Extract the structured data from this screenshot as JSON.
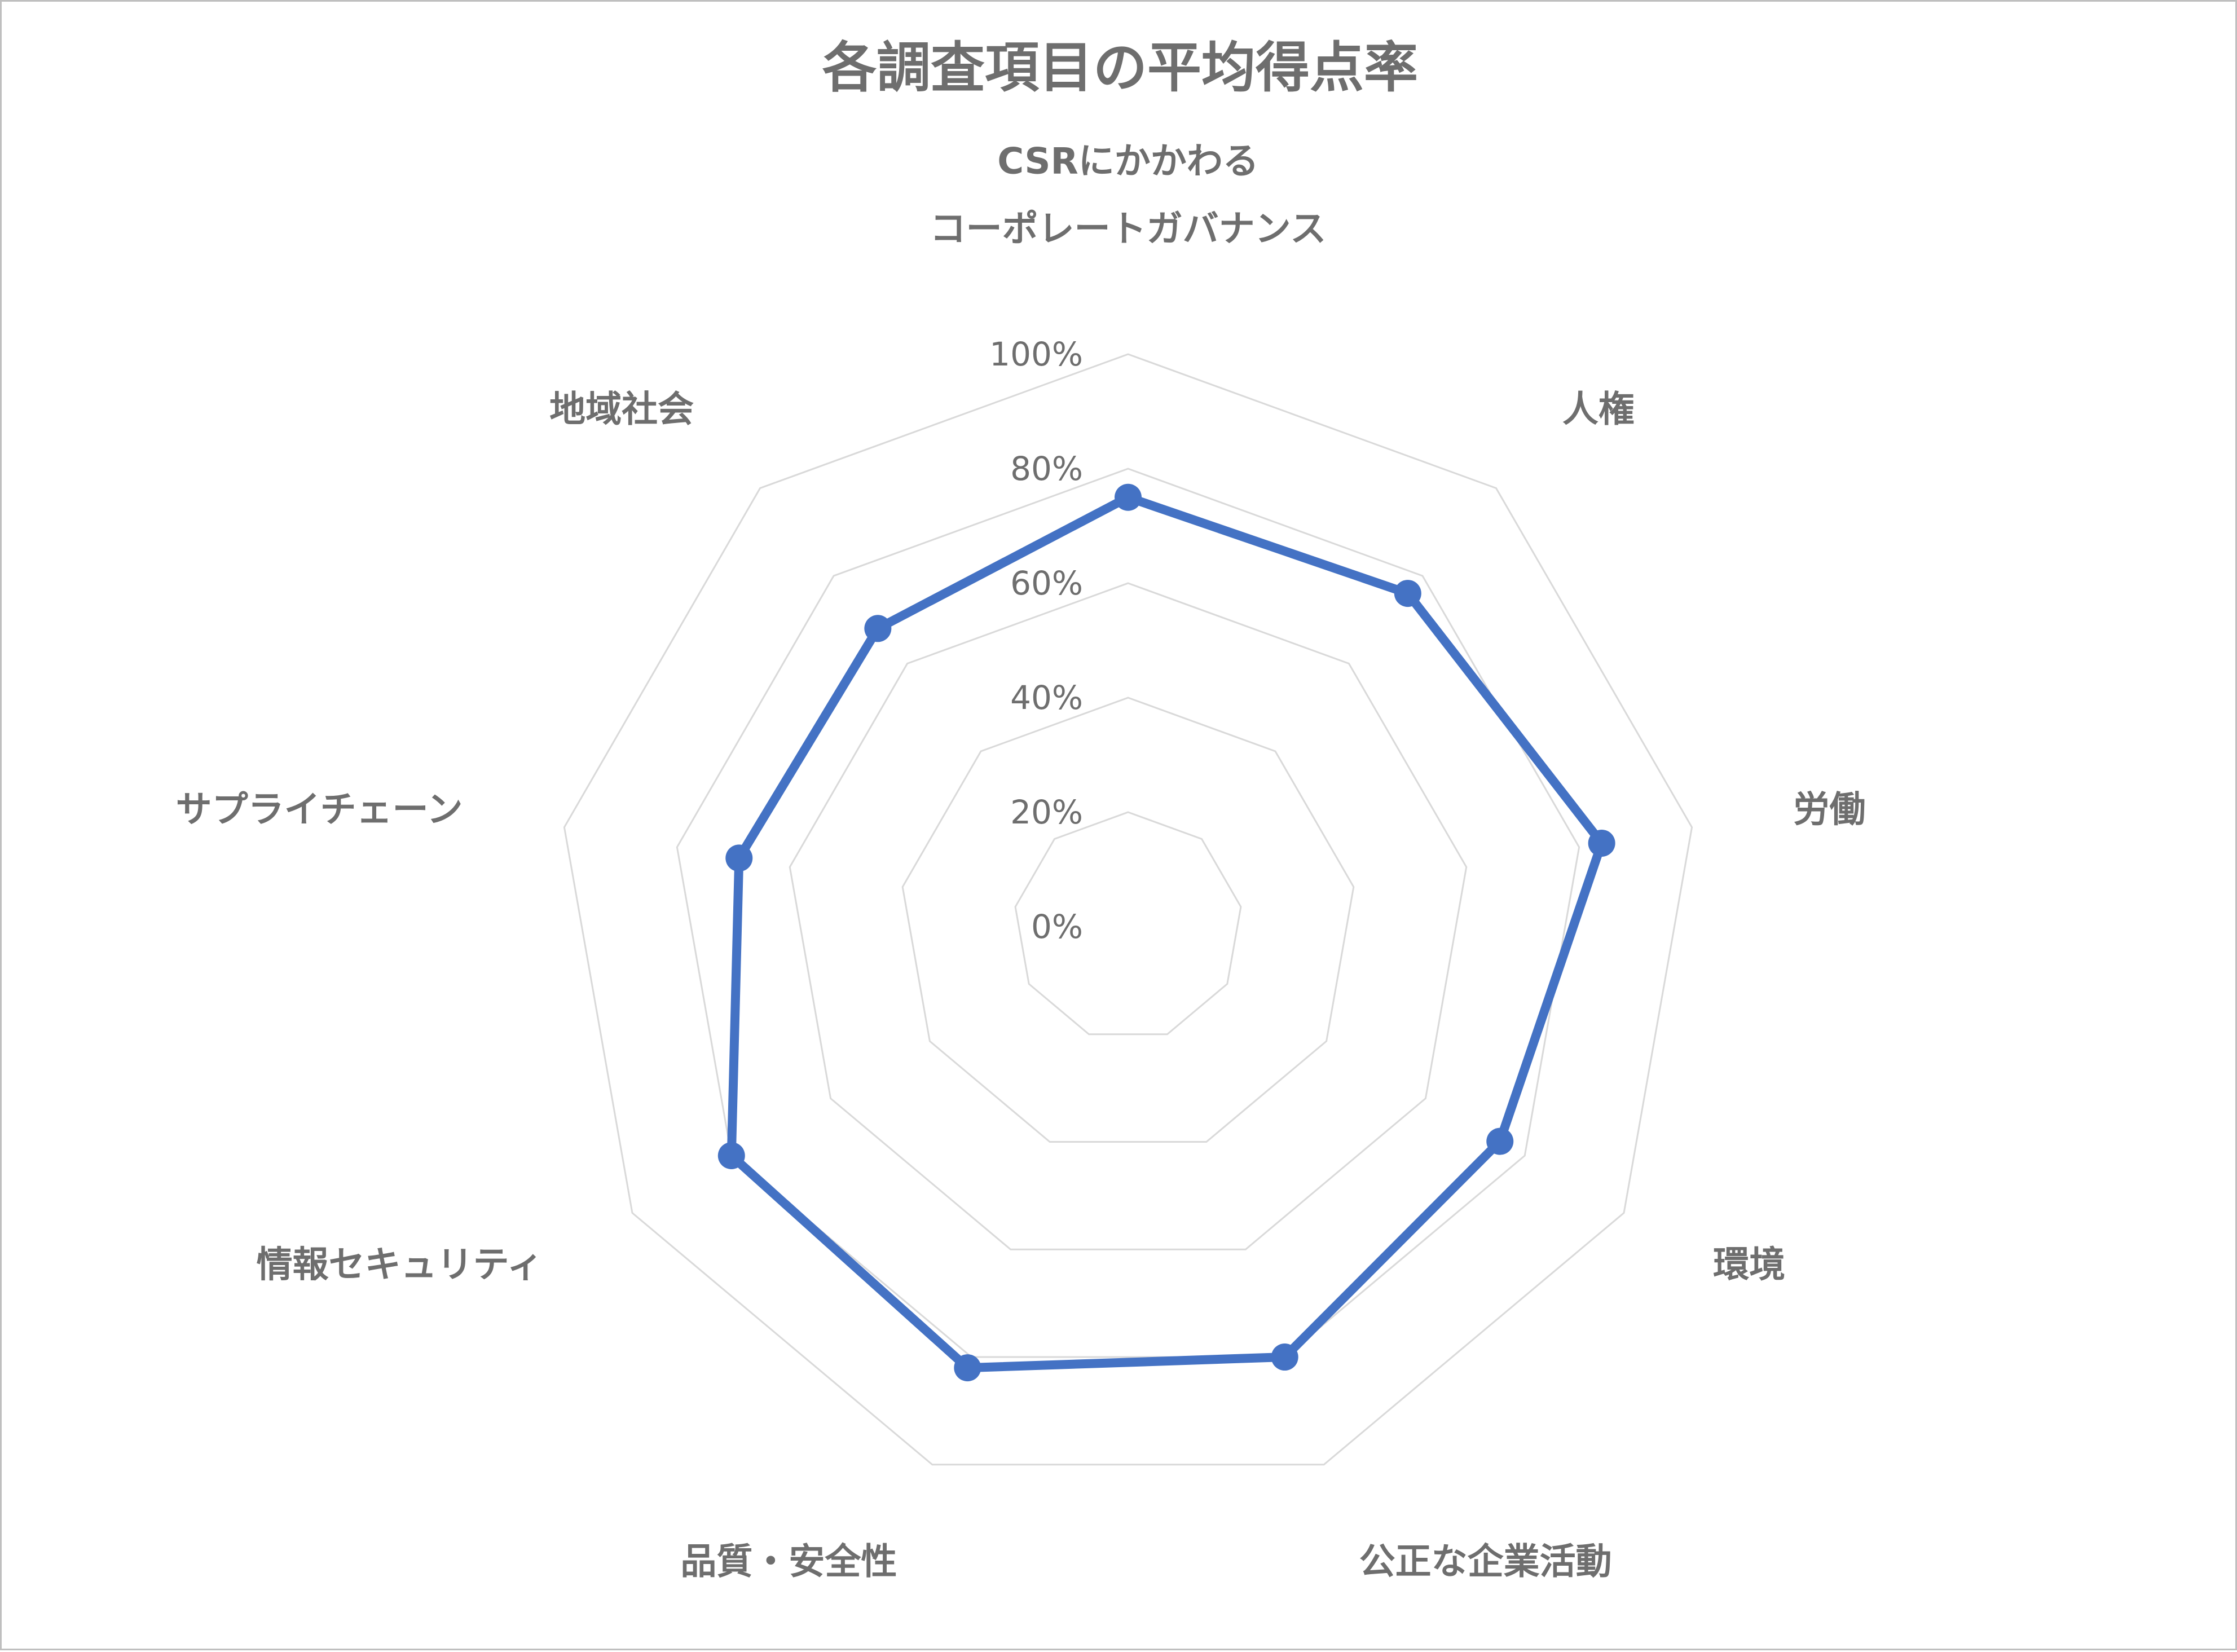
{
  "chart_data": {
    "type": "radar",
    "title": "各調査項目の平均得点率",
    "categories": [
      [
        "CSRにかかわる",
        "コーポレートガバナンス"
      ],
      [
        "人権"
      ],
      [
        "労働"
      ],
      [
        "環境"
      ],
      [
        "公正な企業活動"
      ],
      [
        "品質・安全性"
      ],
      [
        "情報セキュリティ"
      ],
      [
        "サプライチェーン"
      ],
      [
        "地域社会"
      ]
    ],
    "series": [
      {
        "color": "#4472C4",
        "values": [
          0.75,
          0.76,
          0.84,
          0.75,
          0.8,
          0.82,
          0.8,
          0.69,
          0.68
        ]
      }
    ],
    "r_ticks": [
      "0%",
      "20%",
      "40%",
      "60%",
      "80%",
      "100%"
    ],
    "r_range": [
      0,
      1
    ],
    "grid": true,
    "legend": "none",
    "grid_color": "#D9D9D9",
    "text_color": "#6E6E6E"
  }
}
